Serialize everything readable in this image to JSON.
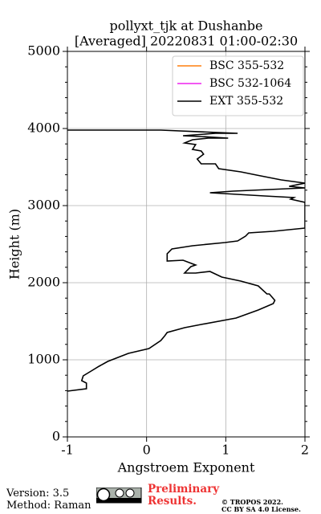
{
  "chart_data": {
    "type": "line",
    "title": "pollyxt_tjk at Dushanbe",
    "subtitle": "[Averaged] 20220831 01:00-02:30",
    "x_label": "Angstroem Exponent",
    "y_label": "Height (m)",
    "xlim": [
      -1,
      2
    ],
    "xticks": [
      -1,
      0,
      1,
      2
    ],
    "ylim": [
      0,
      5000
    ],
    "yticks": [
      0,
      1000,
      2000,
      3000,
      4000,
      5000
    ],
    "yminorticks": [
      200,
      400,
      600,
      800,
      1200,
      1400,
      1600,
      1800,
      2200,
      2400,
      2600,
      2800,
      3200,
      3400,
      3600,
      3800,
      4200,
      4400,
      4600,
      4800
    ],
    "grid": true,
    "legend": "upper right",
    "y": [
      594,
      625,
      698,
      729,
      792,
      854,
      917,
      979,
      1083,
      1146,
      1250,
      1313,
      1354,
      1417,
      1458,
      1542,
      1646,
      1729,
      1771,
      1854,
      1854,
      1958,
      2021,
      2073,
      2146,
      2125,
      2125,
      2208,
      2229,
      2292,
      2281,
      2375,
      2438,
      2479,
      2521,
      2542,
      2604,
      2646,
      2667,
      2708,
      3042,
      3083,
      3104,
      3125,
      3167,
      3188,
      3229,
      3250,
      3292,
      3333,
      3396,
      3438,
      3479,
      3542,
      3542,
      3604,
      3667,
      3708,
      3729,
      3792,
      3813,
      3854,
      3875,
      3875,
      3896,
      3906,
      3938,
      3938,
      3979,
      3979
    ],
    "series": [
      {
        "name": "BSC 355-532",
        "color": "#ff7f0e",
        "values": [
          null,
          null,
          null,
          null,
          null,
          null,
          null,
          null,
          null,
          null,
          null,
          null,
          null,
          null,
          null,
          null,
          null,
          null,
          null,
          null,
          null,
          null,
          null,
          null,
          null,
          null,
          null,
          null,
          null,
          null,
          null,
          null,
          null,
          null,
          null,
          null,
          null,
          null,
          null,
          null,
          null,
          null,
          null,
          null,
          null,
          null,
          null,
          null,
          null,
          null,
          null,
          null,
          null,
          null,
          null,
          null,
          null,
          null,
          null,
          null,
          null,
          null,
          null,
          null,
          null,
          null,
          null,
          null,
          null,
          null
        ]
      },
      {
        "name": "BSC 532-1064",
        "color": "#ee22ee",
        "values": [
          null,
          null,
          null,
          null,
          null,
          null,
          null,
          null,
          null,
          null,
          null,
          null,
          null,
          null,
          null,
          null,
          null,
          null,
          null,
          null,
          null,
          null,
          null,
          null,
          null,
          null,
          null,
          null,
          null,
          null,
          null,
          null,
          null,
          null,
          null,
          null,
          null,
          null,
          null,
          null,
          null,
          null,
          null,
          null,
          null,
          null,
          null,
          null,
          null,
          null,
          null,
          null,
          null,
          null,
          null,
          null,
          null,
          null,
          null,
          null,
          null,
          null,
          null,
          null,
          null,
          null,
          null,
          null,
          null,
          null
        ]
      },
      {
        "name": "EXT 355-532",
        "color": "#000000",
        "values": [
          -1.0,
          -0.76,
          -0.76,
          -0.82,
          -0.8,
          -0.7,
          -0.6,
          -0.49,
          -0.23,
          0.03,
          0.18,
          0.23,
          0.26,
          0.48,
          0.69,
          1.13,
          1.41,
          1.6,
          1.62,
          1.55,
          1.52,
          1.41,
          1.19,
          0.95,
          0.8,
          0.62,
          0.48,
          0.56,
          0.62,
          0.46,
          0.26,
          0.26,
          0.32,
          0.58,
          0.99,
          1.15,
          1.25,
          1.29,
          1.6,
          2.0,
          2.0,
          1.82,
          1.86,
          1.49,
          0.8,
          1.09,
          2.0,
          1.8,
          2.0,
          1.7,
          1.39,
          1.19,
          0.91,
          0.87,
          0.69,
          0.64,
          0.72,
          0.69,
          0.58,
          0.62,
          0.48,
          0.58,
          0.78,
          1.03,
          0.69,
          0.46,
          0.87,
          1.15,
          0.18,
          -1.0
        ]
      }
    ]
  },
  "footer": {
    "version": "Version: 3.5",
    "method": "Method: Raman",
    "notice": "Preliminary Results.",
    "copyright": "© TROPOS 2022.",
    "license": "CC BY SA 4.0 License."
  }
}
